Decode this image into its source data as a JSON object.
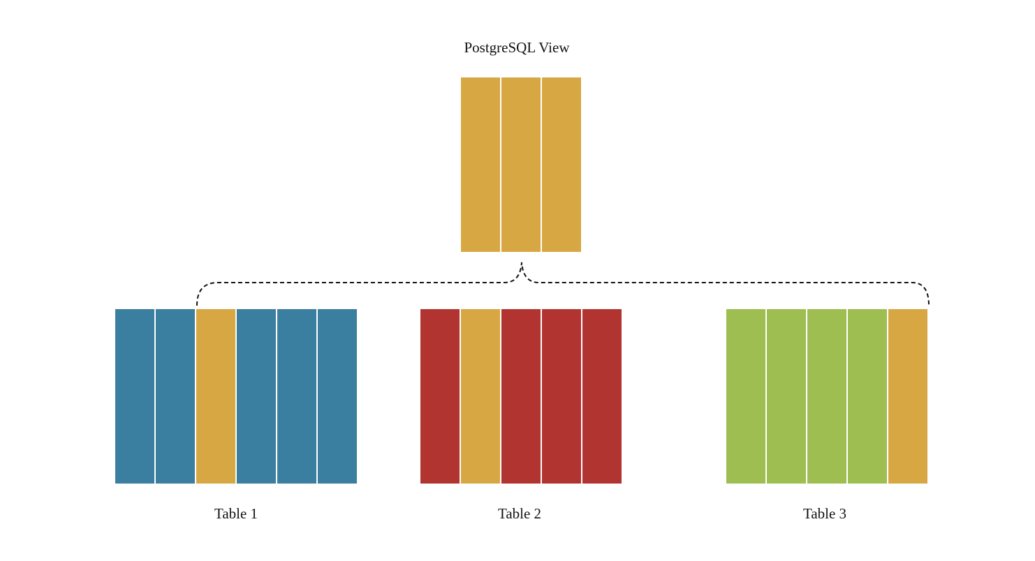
{
  "view": {
    "title": "PostgreSQL View",
    "columns": [
      "shared",
      "shared",
      "shared"
    ]
  },
  "tables": [
    {
      "label": "Table 1",
      "columns": [
        "own",
        "own",
        "shared",
        "own",
        "own",
        "own"
      ],
      "color": "#3b7fa0"
    },
    {
      "label": "Table 2",
      "columns": [
        "own",
        "shared",
        "own",
        "own",
        "own"
      ],
      "color": "#b23430"
    },
    {
      "label": "Table 3",
      "columns": [
        "own",
        "own",
        "own",
        "own",
        "shared"
      ],
      "color": "#9ebe52"
    }
  ],
  "colors": {
    "shared": "#d7a743",
    "connector": "#111111"
  }
}
